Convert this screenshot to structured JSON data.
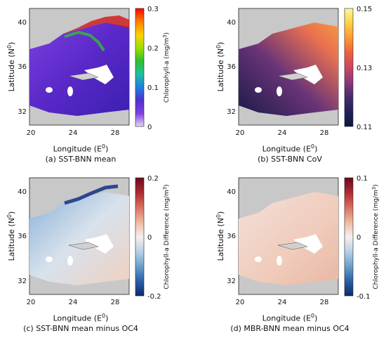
{
  "panels": [
    {
      "id": "a",
      "caption": "(a) SST-BNN mean",
      "xlabel": "Longitude (E",
      "xlabel_sup": "0",
      "xlabel_end": ")",
      "ylabel": "Latitude (N",
      "ylabel_sup": "0",
      "ylabel_end": ")",
      "colorbar_label": "Chlorophyll-a (mg/m",
      "colorbar_sup": "3",
      "colorbar_end": ")",
      "x_ticks": [
        "20",
        "24",
        "28"
      ],
      "y_ticks": [
        "40",
        "36",
        "32"
      ],
      "cb_ticks": [
        "0.3",
        "0.2",
        "0.1",
        "0"
      ],
      "colormap": [
        "#ff0000",
        "#ff8000",
        "#ffd000",
        "#a0e000",
        "#30c030",
        "#20c0a0",
        "#2080e0",
        "#5030d0",
        "#8040e0",
        "#e0d8f8"
      ],
      "sea_color": "#5a28c8",
      "coast_color": "#2cc080"
    },
    {
      "id": "b",
      "caption": "(b) SST-BNN CoV",
      "xlabel": "Longitude (E",
      "xlabel_sup": "0",
      "xlabel_end": ")",
      "ylabel": "Latitude (N",
      "ylabel_sup": "0",
      "ylabel_end": ")",
      "colorbar_label": "",
      "colorbar_sup": "",
      "colorbar_end": "",
      "x_ticks": [
        "20",
        "24",
        "28"
      ],
      "y_ticks": [
        "40",
        "36",
        "32"
      ],
      "cb_ticks": [
        "0.15",
        "0.13",
        "0.11"
      ],
      "colormap": [
        "#fff7a0",
        "#ffd040",
        "#ff9a30",
        "#f06040",
        "#c84860",
        "#8a3878",
        "#4a2a70",
        "#20205a",
        "#0c1a3a"
      ],
      "sea_color": "#3a2c72",
      "coast_color": "#f08040"
    },
    {
      "id": "c",
      "caption": "(c) SST-BNN mean minus OC4",
      "xlabel": "Longitude (E",
      "xlabel_sup": "0",
      "xlabel_end": ")",
      "ylabel": "Latitude (N",
      "ylabel_sup": "0",
      "ylabel_end": ")",
      "colorbar_label": "Chlorophyll-a Difference (mg/m",
      "colorbar_sup": "3",
      "colorbar_end": ")",
      "x_ticks": [
        "20",
        "24",
        "28"
      ],
      "y_ticks": [
        "40",
        "36",
        "32"
      ],
      "cb_ticks": [
        "0.2",
        "0",
        "-0.2"
      ],
      "colormap": [
        "#6a0a1e",
        "#b02a30",
        "#d87060",
        "#f0b8a0",
        "#f7f0ee",
        "#b8d0e8",
        "#6aa0cc",
        "#2a60a8",
        "#0a2a6a"
      ],
      "sea_color": "#d8e2ec",
      "coast_color": "#4a7ab8"
    },
    {
      "id": "d",
      "caption": "(d) MBR-BNN mean minus OC4",
      "xlabel": "Longitude (E",
      "xlabel_sup": "0",
      "xlabel_end": ")",
      "ylabel": "Latitude (N",
      "ylabel_sup": "0",
      "ylabel_end": ")",
      "colorbar_label": "Chlorophyll-a Difference (mg/m",
      "colorbar_sup": "3",
      "colorbar_end": ")",
      "x_ticks": [
        "20",
        "24",
        "28"
      ],
      "y_ticks": [
        "40",
        "36",
        "32"
      ],
      "cb_ticks": [
        "0.1",
        "0",
        "-0.1"
      ],
      "colormap": [
        "#6a0a1e",
        "#b02a30",
        "#d87060",
        "#f0b8a0",
        "#f7f0ee",
        "#b8d0e8",
        "#6aa0cc",
        "#2a60a8",
        "#0a2a6a"
      ],
      "sea_color": "#f0d4c8",
      "coast_color": "#e0a890"
    }
  ]
}
